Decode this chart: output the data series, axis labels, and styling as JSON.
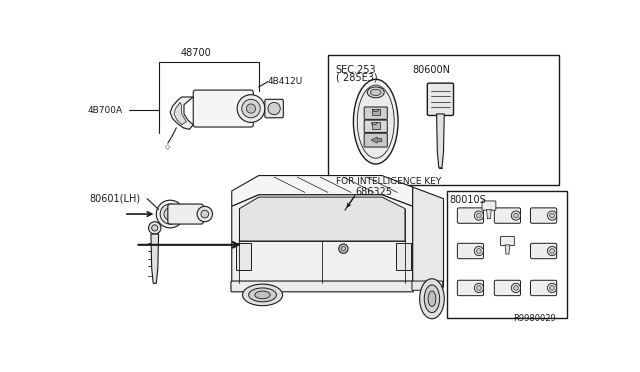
{
  "bg_color": "#ffffff",
  "line_color": "#1a1a1a",
  "text_color": "#1a1a1a",
  "fig_width": 6.4,
  "fig_height": 3.72,
  "dpi": 100,
  "labels": {
    "top_left_main": "48700",
    "top_left_sub1": "4B700A",
    "top_left_sub2": "4B412U",
    "top_right_sec": "SEC.253",
    "top_right_sec2": "( 285E3)",
    "top_right_part": "80600N",
    "top_right_caption": "FOR INTELLIGENCE KEY",
    "bottom_left": "80601(LH)",
    "bottom_center": "686325",
    "bottom_right": "80010S",
    "diagram_id": "R9980029"
  }
}
